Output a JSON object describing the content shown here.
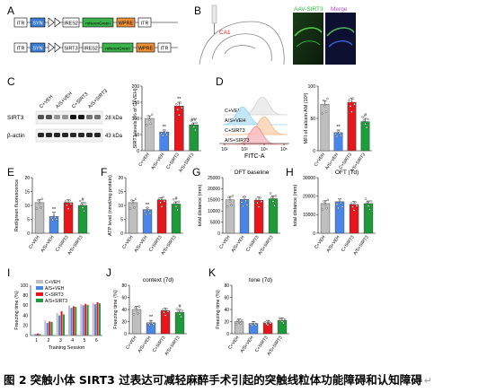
{
  "colors": {
    "veh": "#bfbfbf",
    "as_veh": "#4a86e8",
    "c_sirt3": "#e8161b",
    "as_sirt3": "#1f9a3a",
    "syn": "#3a7bd5",
    "gfp": "#3cb34a",
    "wpre": "#e8913a",
    "itr": "#ffffff"
  },
  "panels": {
    "A": {
      "letter": "A",
      "row1": [
        "ITR",
        "SYN",
        "IRES2",
        "mNeonGreen",
        "WPRE",
        "ITR"
      ],
      "row2": [
        "ITR",
        "SYN",
        "SIRT3",
        "IRES2",
        "mNeonGreen",
        "WPRE",
        "ITR"
      ]
    },
    "B": {
      "letter": "B",
      "region": "CA1",
      "img1_label": "AAV-SIRT3",
      "img2_label": "Merge"
    },
    "C": {
      "letter": "C",
      "row1": "SIRT3",
      "row2": "β-actin",
      "kda1": "28 kDa",
      "kda2": "43 kDa",
      "lanes": [
        "C+VEH",
        "A/S+VEH",
        "C+SIRT3",
        "A/S+SIRT3"
      ]
    },
    "D": {
      "letter": "D",
      "hist_labels": [
        "C+VEH",
        "A/S+VEH",
        "C+SIRT3",
        "A/S+SIRT3"
      ],
      "hist_xlabel": "FITC-A",
      "hist_ticks": [
        "10²",
        "10³",
        "10⁴",
        "10⁵"
      ]
    },
    "E": {
      "letter": "E"
    },
    "F": {
      "letter": "F"
    },
    "G": {
      "letter": "G"
    },
    "H": {
      "letter": "H"
    },
    "I": {
      "letter": "I"
    },
    "J": {
      "letter": "J"
    },
    "K": {
      "letter": "K"
    }
  },
  "chart_data": [
    {
      "id": "C-bar",
      "type": "bar",
      "ylabel": "SIRT3 levels (% of C+VEH)",
      "ylim": [
        0,
        200
      ],
      "ticks": [
        "0",
        "50",
        "100",
        "150",
        "200"
      ],
      "categories": [
        "C+VEH",
        "A/S+VEH",
        "C+SIRT3",
        "A/S+SIRT3"
      ],
      "values": [
        100,
        58,
        138,
        80
      ],
      "errors": [
        8,
        6,
        12,
        6
      ],
      "marks": [
        "",
        "**",
        "**",
        "##"
      ]
    },
    {
      "id": "D-bar",
      "type": "bar",
      "ylabel": "MFI of calcein AM (10³)",
      "ylim": [
        0,
        100
      ],
      "ticks": [
        "0",
        "50",
        "100"
      ],
      "categories": [
        "C+VEH",
        "A/S+VEH",
        "C+SIRT3",
        "A/S+SIRT3"
      ],
      "values": [
        72,
        28,
        75,
        45
      ],
      "errors": [
        5,
        4,
        6,
        5
      ],
      "marks": [
        "",
        "**",
        "",
        "#"
      ]
    },
    {
      "id": "E",
      "type": "bar",
      "ylabel": "Red/green fluorescence",
      "ylim": [
        0,
        20
      ],
      "ticks": [
        "0",
        "5",
        "10",
        "15",
        "20"
      ],
      "categories": [
        "C+VEH",
        "A/S+VEH",
        "C+SIRT3",
        "A/S+SIRT3"
      ],
      "values": [
        11,
        6,
        11,
        10
      ],
      "errors": [
        1,
        1.5,
        1,
        1
      ],
      "marks": [
        "",
        "**",
        "",
        "#"
      ]
    },
    {
      "id": "F",
      "type": "bar",
      "ylabel": "ATP level (nmol/mg protein)",
      "ylim": [
        0,
        20
      ],
      "ticks": [
        "0",
        "5",
        "10",
        "15",
        "20"
      ],
      "categories": [
        "C+VEH",
        "A/S+VEH",
        "C+SIRT3",
        "A/S+SIRT3"
      ],
      "values": [
        11,
        8.5,
        12,
        10.5
      ],
      "errors": [
        0.8,
        0.6,
        0.8,
        0.8
      ],
      "marks": [
        "",
        "**",
        "",
        "#"
      ]
    },
    {
      "id": "G",
      "type": "bar",
      "title": "OFT baseline",
      "ylabel": "total distance (mm)",
      "ylim": [
        0,
        25000
      ],
      "ticks": [
        "0",
        "5000",
        "10000",
        "15000",
        "20000",
        "25000"
      ],
      "categories": [
        "C+VEH",
        "A/S+VEH",
        "C+SIRT3",
        "A/S+SIRT3"
      ],
      "values": [
        15000,
        15200,
        14800,
        15500
      ],
      "errors": [
        1500,
        1200,
        1400,
        1300
      ],
      "marks": [
        "",
        "",
        "",
        ""
      ]
    },
    {
      "id": "H",
      "type": "bar",
      "title": "OFT (7d)",
      "ylabel": "total distance (mm)",
      "ylim": [
        0,
        30000
      ],
      "ticks": [
        "0",
        "10000",
        "20000",
        "30000"
      ],
      "categories": [
        "C+VEH",
        "A/S+VEH",
        "C+SIRT3",
        "A/S+SIRT3"
      ],
      "values": [
        16000,
        17000,
        15500,
        16000
      ],
      "errors": [
        1500,
        1500,
        1600,
        1400
      ],
      "marks": [
        "",
        "",
        "",
        ""
      ]
    },
    {
      "id": "I",
      "type": "bar",
      "xlabel": "Training Session",
      "ylabel": "Freezing time (%)",
      "ylim": [
        0,
        100
      ],
      "ticks": [
        "0",
        "20",
        "40",
        "60",
        "80",
        "100"
      ],
      "categories": [
        "1",
        "2",
        "3",
        "4",
        "5",
        "6"
      ],
      "series": [
        {
          "name": "C+VEH",
          "values": [
            3,
            30,
            45,
            60,
            62,
            65
          ]
        },
        {
          "name": "A/S+VEH",
          "values": [
            3,
            25,
            40,
            55,
            60,
            62
          ]
        },
        {
          "name": "C+SIRT3",
          "values": [
            4,
            28,
            48,
            58,
            63,
            66
          ]
        },
        {
          "name": "A/S+SIRT3",
          "values": [
            3,
            27,
            42,
            57,
            61,
            64
          ]
        }
      ]
    },
    {
      "id": "J",
      "type": "bar",
      "title": "context (7d)",
      "ylabel": "Freezing time (%)",
      "ylim": [
        0,
        80
      ],
      "ticks": [
        "0",
        "20",
        "40",
        "60",
        "80"
      ],
      "categories": [
        "C+VEH",
        "A/S+VEH",
        "C+SIRT3",
        "A/S+SIRT3"
      ],
      "values": [
        40,
        18,
        38,
        35
      ],
      "errors": [
        5,
        4,
        4,
        5
      ],
      "marks": [
        "",
        "**",
        "",
        "#"
      ]
    },
    {
      "id": "K",
      "type": "bar",
      "title": "tone  (7d)",
      "ylabel": "Freezing time (%)",
      "ylim": [
        0,
        80
      ],
      "ticks": [
        "0",
        "20",
        "40",
        "60",
        "80"
      ],
      "categories": [
        "C+VEH",
        "A/S+VEH",
        "C+SIRT3",
        "A/S+SIRT3"
      ],
      "values": [
        20,
        17,
        18,
        22
      ],
      "errors": [
        4,
        3,
        4,
        4
      ],
      "marks": [
        "",
        "",
        "",
        ""
      ]
    }
  ],
  "caption": {
    "label": "图 2",
    "text": "突触小体 SIRT3 过表达可减轻麻醉手术引起的突触线粒体功能障碍和认知障碍",
    "ret": "↵"
  }
}
